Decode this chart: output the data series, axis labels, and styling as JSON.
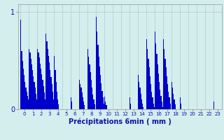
{
  "xlabel": "Précipitations 6min ( mm )",
  "background_color": "#d4eeee",
  "bar_color": "#0000cc",
  "grid_color": "#b0cccc",
  "ylim": [
    0,
    1.05
  ],
  "n_sub": 10,
  "hours_sub": [
    [
      0.92,
      0.6,
      0.5,
      0.42,
      0.35,
      0.28,
      0.22,
      0.18,
      0.14,
      0.1
    ],
    [
      0.62,
      0.58,
      0.52,
      0.46,
      0.4,
      0.34,
      0.28,
      0.22,
      0.16,
      0.1
    ],
    [
      0.62,
      0.58,
      0.53,
      0.47,
      0.42,
      0.36,
      0.3,
      0.24,
      0.17,
      0.1
    ],
    [
      0.78,
      0.7,
      0.62,
      0.55,
      0.48,
      0.4,
      0.33,
      0.26,
      0.18,
      0.1
    ],
    [
      0.55,
      0.4,
      0.28,
      0.18,
      0.1,
      0.05,
      0.0,
      0.0,
      0.0,
      0.0
    ],
    [
      0.0,
      0.0,
      0.0,
      0.0,
      0.0,
      0.0,
      0.0,
      0.0,
      0.0,
      0.0
    ],
    [
      0.12,
      0.08,
      0.0,
      0.0,
      0.0,
      0.0,
      0.0,
      0.0,
      0.0,
      0.0
    ],
    [
      0.3,
      0.26,
      0.22,
      0.17,
      0.12,
      0.08,
      0.04,
      0.0,
      0.0,
      0.0
    ],
    [
      0.62,
      0.54,
      0.46,
      0.38,
      0.3,
      0.22,
      0.15,
      0.1,
      0.05,
      0.0
    ],
    [
      0.95,
      0.8,
      0.66,
      0.54,
      0.44,
      0.35,
      0.27,
      0.19,
      0.12,
      0.06
    ],
    [
      0.13,
      0.08,
      0.04,
      0.0,
      0.0,
      0.0,
      0.0,
      0.0,
      0.0,
      0.0
    ],
    [
      0.0,
      0.0,
      0.0,
      0.0,
      0.0,
      0.0,
      0.0,
      0.0,
      0.0,
      0.0
    ],
    [
      0.0,
      0.0,
      0.0,
      0.0,
      0.0,
      0.0,
      0.0,
      0.0,
      0.0,
      0.0
    ],
    [
      0.12,
      0.06,
      0.0,
      0.0,
      0.0,
      0.0,
      0.0,
      0.0,
      0.0,
      0.0
    ],
    [
      0.35,
      0.28,
      0.22,
      0.16,
      0.1,
      0.06,
      0.02,
      0.0,
      0.0,
      0.0
    ],
    [
      0.72,
      0.62,
      0.52,
      0.43,
      0.34,
      0.26,
      0.18,
      0.12,
      0.06,
      0.02
    ],
    [
      0.8,
      0.68,
      0.57,
      0.46,
      0.37,
      0.28,
      0.2,
      0.14,
      0.08,
      0.02
    ],
    [
      0.72,
      0.62,
      0.52,
      0.43,
      0.34,
      0.26,
      0.18,
      0.12,
      0.06,
      0.0
    ],
    [
      0.28,
      0.22,
      0.16,
      0.1,
      0.05,
      0.0,
      0.0,
      0.0,
      0.0,
      0.0
    ],
    [
      0.12,
      0.06,
      0.0,
      0.0,
      0.0,
      0.0,
      0.0,
      0.0,
      0.0,
      0.0
    ],
    [
      0.0,
      0.0,
      0.0,
      0.0,
      0.0,
      0.0,
      0.0,
      0.0,
      0.0,
      0.0
    ],
    [
      0.0,
      0.0,
      0.0,
      0.0,
      0.0,
      0.0,
      0.0,
      0.0,
      0.0,
      0.0
    ],
    [
      0.0,
      0.0,
      0.0,
      0.0,
      0.0,
      0.0,
      0.0,
      0.0,
      0.0,
      0.0
    ],
    [
      0.08,
      0.0,
      0.0,
      0.0,
      0.0,
      0.0,
      0.0,
      0.0,
      0.0,
      0.0
    ]
  ]
}
